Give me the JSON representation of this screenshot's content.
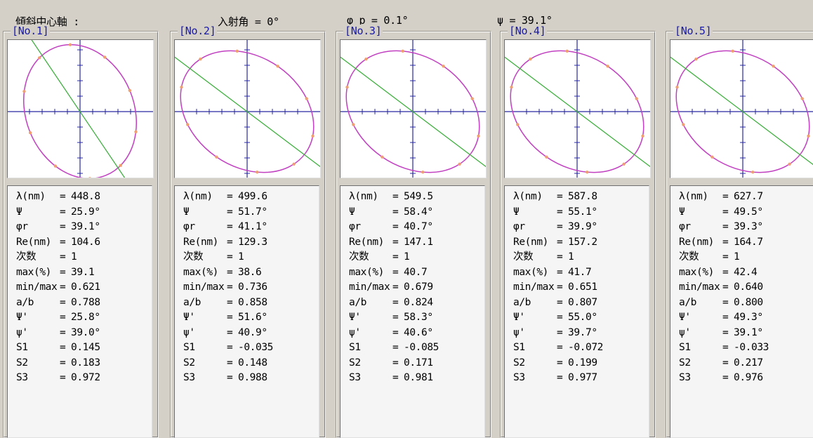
{
  "header": {
    "axis_label": "傾斜中心軸 :",
    "incidence_label": "入射角 =   0°",
    "phi_p_label": "φ p =   0.1°",
    "psi_label": "ψ  =  39.1°"
  },
  "row_labels": [
    "λ(nm)",
    "Ψ",
    "φr",
    "Re(nm)",
    "次数",
    "max(%)",
    "min/max",
    "a/b",
    "Ψ'",
    "ψ'",
    "S1",
    "S2",
    "S3"
  ],
  "row_seps": [
    "=",
    "=",
    "=",
    "=",
    "=",
    "=",
    "=",
    "=",
    "=",
    "=",
    "=",
    "=",
    "="
  ],
  "colors": {
    "ellipse": "#c040c0",
    "points": "#f0a070",
    "axis_line": "#40b040",
    "crosshair": "#2828a0",
    "title": "#1a1aa8"
  },
  "panels": [
    {
      "title": "[No.1]",
      "angle_deg": 56,
      "values": [
        "448.8",
        "25.9°",
        "39.1°",
        "104.6",
        "1",
        "39.1",
        "0.621",
        "0.788",
        "25.8°",
        "39.0°",
        "0.145",
        "0.183",
        "0.972"
      ]
    },
    {
      "title": "[No.2]",
      "angle_deg": 41,
      "values": [
        "499.6",
        "51.7°",
        "41.1°",
        "129.3",
        "1",
        "38.6",
        "0.736",
        "0.858",
        "51.6°",
        "40.9°",
        "-0.035",
        "0.148",
        "0.988"
      ]
    },
    {
      "title": "[No.3]",
      "angle_deg": 40.7,
      "values": [
        "549.5",
        "58.4°",
        "40.7°",
        "147.1",
        "1",
        "40.7",
        "0.679",
        "0.824",
        "58.3°",
        "40.6°",
        "-0.085",
        "0.171",
        "0.981"
      ]
    },
    {
      "title": "[No.4]",
      "angle_deg": 39.9,
      "values": [
        "587.8",
        "55.1°",
        "39.9°",
        "157.2",
        "1",
        "41.7",
        "0.651",
        "0.807",
        "55.0°",
        "39.7°",
        "-0.072",
        "0.199",
        "0.977"
      ]
    },
    {
      "title": "[No.5]",
      "angle_deg": 39.3,
      "values": [
        "627.7",
        "49.5°",
        "39.3°",
        "164.7",
        "1",
        "42.4",
        "0.640",
        "0.800",
        "49.3°",
        "39.1°",
        "-0.033",
        "0.217",
        "0.976"
      ]
    }
  ]
}
